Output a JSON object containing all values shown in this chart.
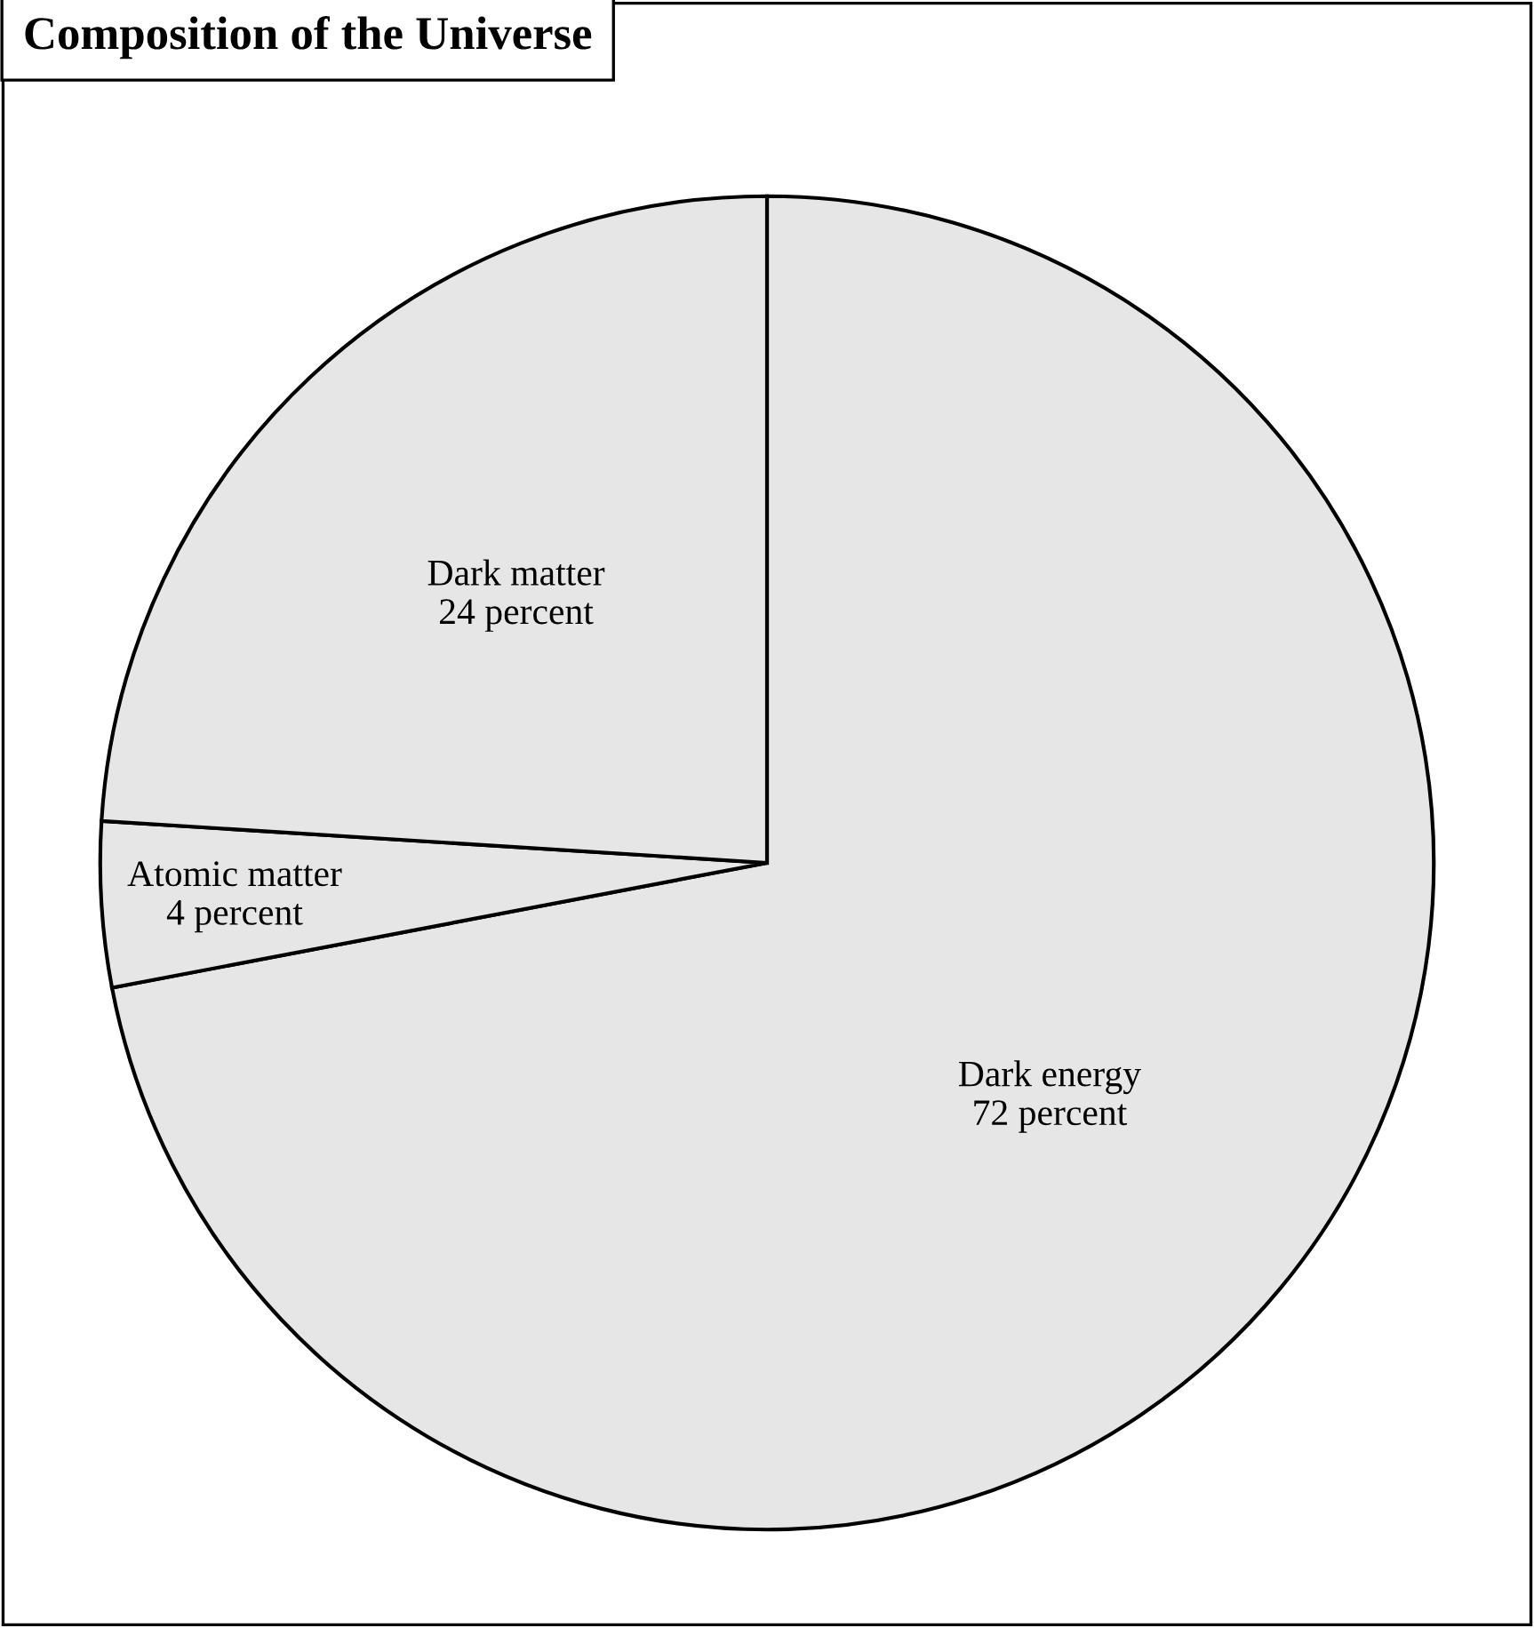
{
  "chart_data": {
    "type": "pie",
    "title": "Composition of the Universe",
    "categories": [
      "Dark energy",
      "Atomic matter",
      "Dark matter"
    ],
    "values": [
      72,
      4,
      24
    ],
    "value_labels": [
      "72 percent",
      "4 percent",
      "24 percent"
    ],
    "colors": [
      "#e6e6e6",
      "#e6e6e6",
      "#e6e6e6"
    ]
  }
}
